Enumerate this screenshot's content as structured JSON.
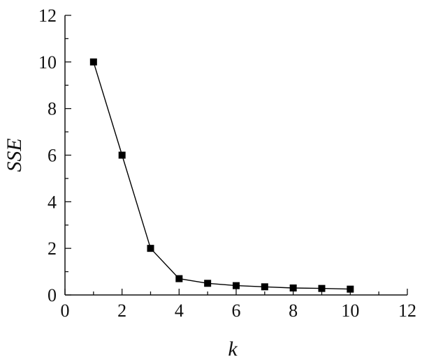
{
  "chart_data": {
    "type": "line",
    "title": "",
    "xlabel": "k",
    "ylabel": "SSE",
    "xlim": [
      0,
      12
    ],
    "ylim": [
      0,
      12
    ],
    "x_ticks": [
      "0",
      "2",
      "4",
      "6",
      "8",
      "10",
      "12"
    ],
    "y_ticks": [
      "0",
      "2",
      "4",
      "6",
      "8",
      "10",
      "12"
    ],
    "grid": false,
    "legend": "none",
    "marker": "filled-square",
    "line_color": "#000000",
    "series": [
      {
        "x": [
          1,
          2,
          3,
          4,
          5,
          6,
          7,
          8,
          9,
          10
        ],
        "values": [
          10,
          6,
          2,
          0.7,
          0.5,
          0.4,
          0.35,
          0.3,
          0.28,
          0.25
        ]
      }
    ]
  }
}
